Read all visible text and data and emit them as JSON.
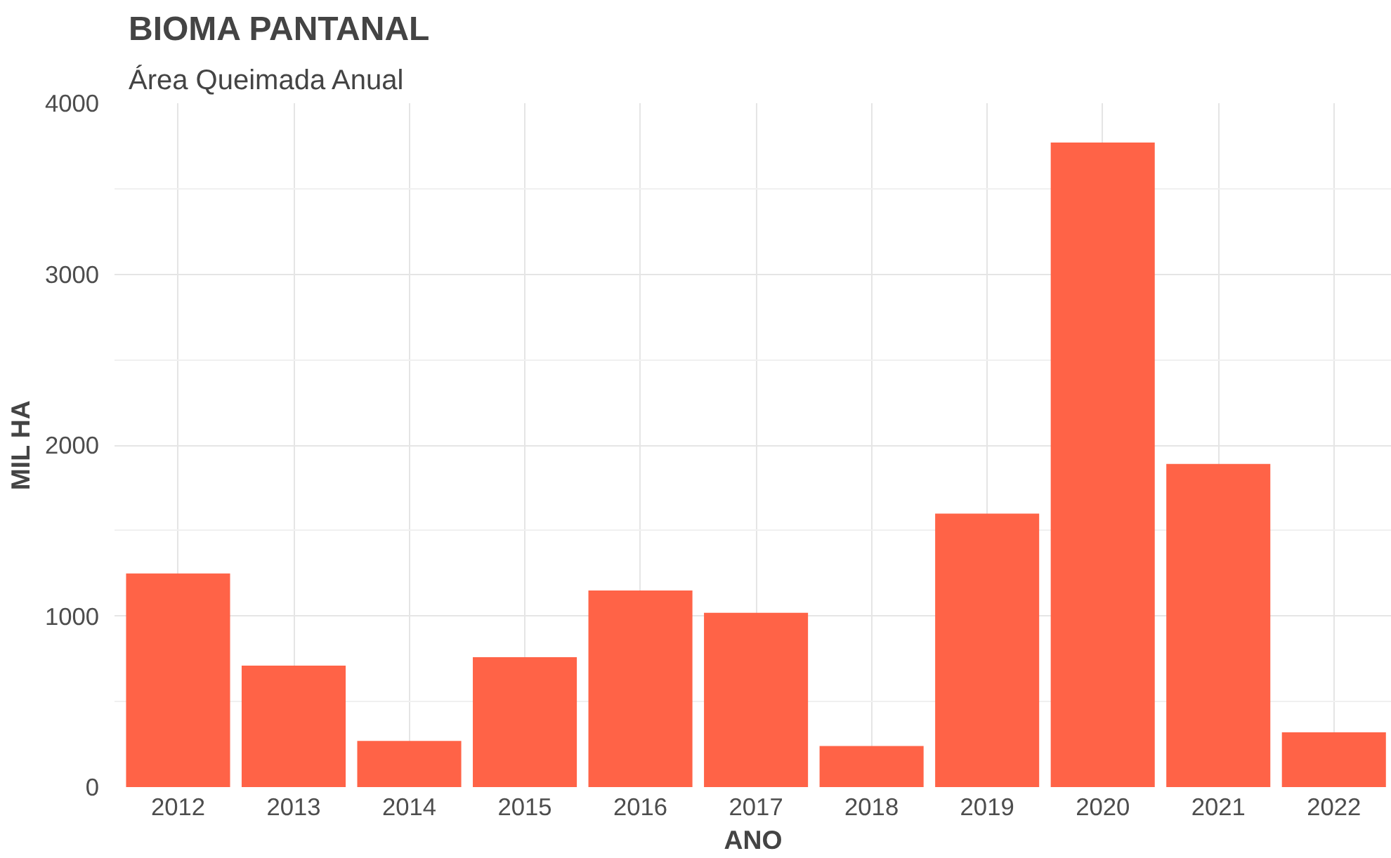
{
  "chart_data": {
    "type": "bar",
    "title": "BIOMA PANTANAL",
    "subtitle": "Área Queimada Anual",
    "xlabel": "ANO",
    "ylabel": "MIL HA",
    "categories": [
      "2012",
      "2013",
      "2014",
      "2015",
      "2016",
      "2017",
      "2018",
      "2019",
      "2020",
      "2021",
      "2022"
    ],
    "values": [
      1250,
      710,
      270,
      760,
      1150,
      1020,
      240,
      1600,
      3770,
      1890,
      320
    ],
    "color": "#ff6347",
    "ylim": [
      0,
      4000
    ],
    "yticks": [
      0,
      {
        "value": 500,
        "label": null
      },
      1000,
      {
        "value": 1500,
        "label": null
      },
      2000,
      {
        "value": 2500,
        "label": null
      },
      3000,
      {
        "value": 3500,
        "label": null
      },
      4000
    ],
    "grid": true
  }
}
